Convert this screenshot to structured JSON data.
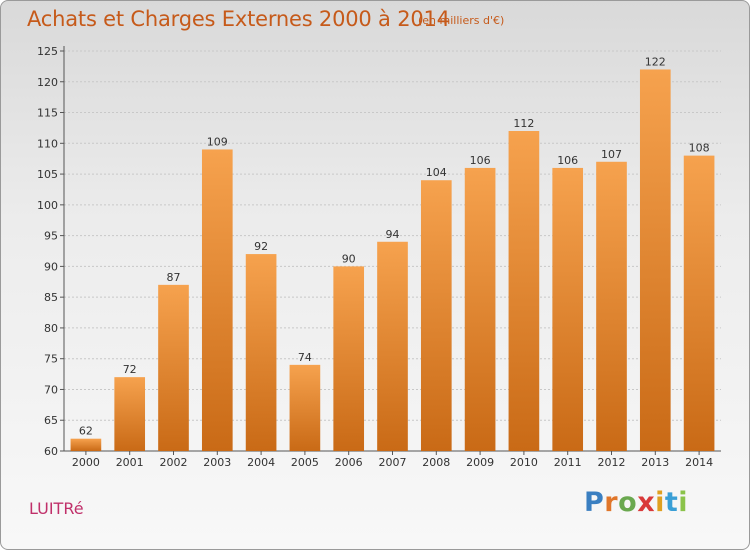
{
  "title": "Achats et Charges Externes 2000 à 2014",
  "subtitle": "(en milliers d'€)",
  "commune": "LUITRé",
  "logo": {
    "letters": [
      "P",
      "r",
      "o",
      "x",
      "i",
      "t",
      "i"
    ],
    "colors": [
      "#3a7fc1",
      "#e0762a",
      "#6aa84f",
      "#d93a3a",
      "#e0a020",
      "#3a9fd6",
      "#8bc34a"
    ]
  },
  "colors": {
    "bar_light": "#f6a24e",
    "bar_dark": "#c96a16",
    "title": "#c65a1a",
    "commune": "#c0306a"
  },
  "chart_data": {
    "type": "bar",
    "categories": [
      "2000",
      "2001",
      "2002",
      "2003",
      "2004",
      "2005",
      "2006",
      "2007",
      "2008",
      "2009",
      "2010",
      "2011",
      "2012",
      "2013",
      "2014"
    ],
    "values": [
      62,
      72,
      87,
      109,
      92,
      74,
      90,
      94,
      104,
      106,
      112,
      106,
      107,
      122,
      108
    ],
    "value_labels": [
      "62",
      "72",
      "87",
      "109",
      "92",
      "74",
      "90",
      "94",
      "104",
      "106",
      "112",
      "106",
      "107",
      "122",
      "108"
    ],
    "yticks": [
      "60",
      "65",
      "70",
      "75",
      "80",
      "85",
      "90",
      "95",
      "100",
      "105",
      "110",
      "115",
      "120",
      "125"
    ],
    "ylim": [
      60,
      125
    ],
    "grid": true,
    "title": "Achats et Charges Externes 2000 à 2014",
    "xlabel": "",
    "ylabel": ""
  }
}
